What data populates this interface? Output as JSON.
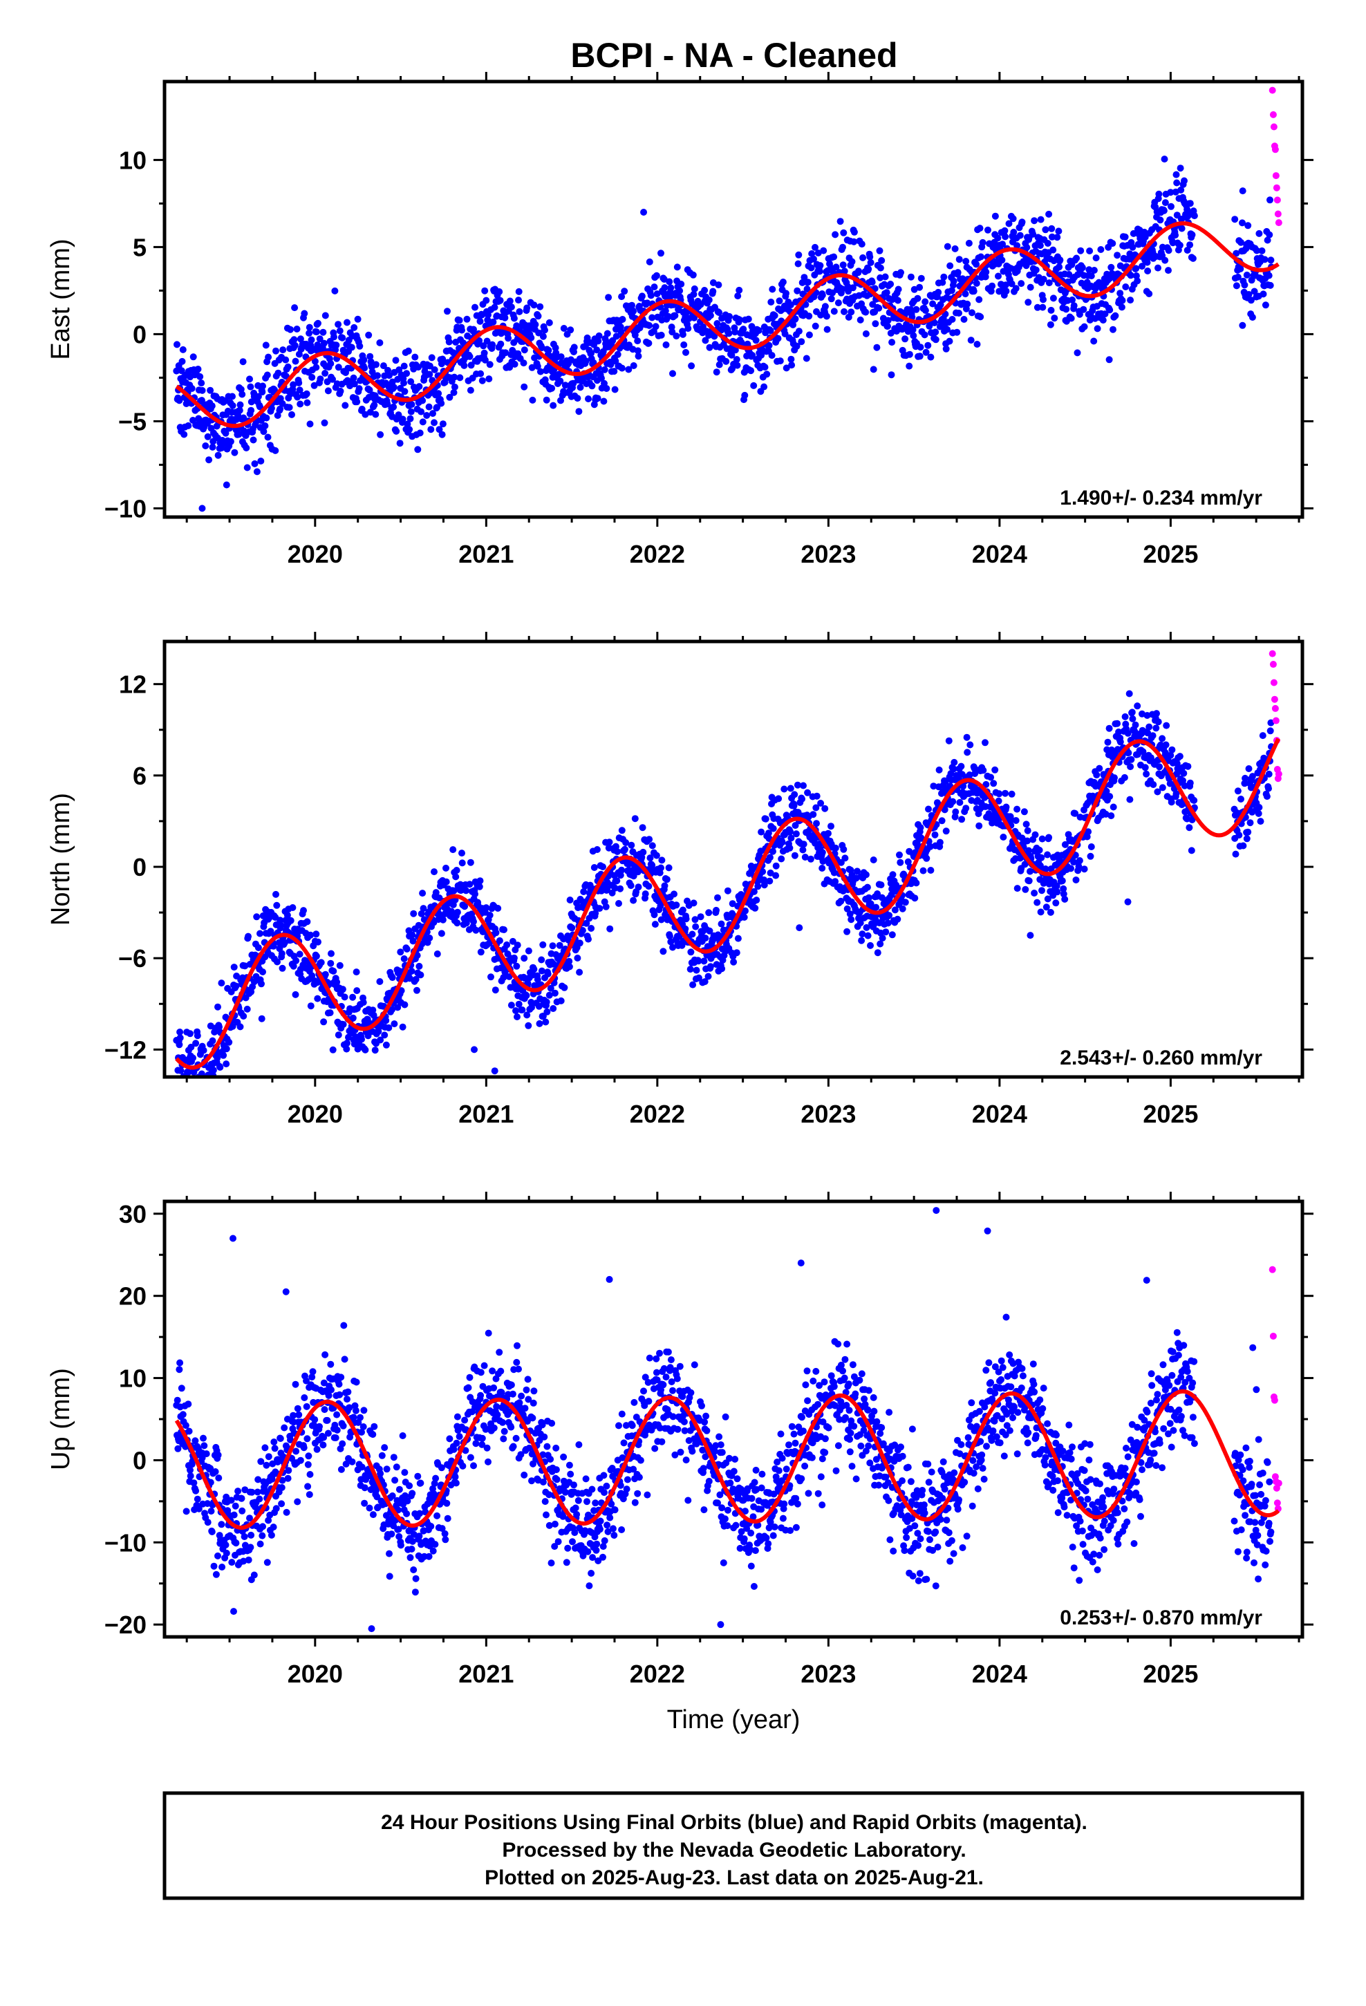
{
  "title": "BCPI  - NA - Cleaned",
  "footer": {
    "lines": [
      "24 Hour Positions Using Final Orbits (blue) and Rapid Orbits (magenta).",
      "Processed by the Nevada Geodetic Laboratory.",
      "Plotted on 2025-Aug-23. Last data on 2025-Aug-21."
    ]
  },
  "colors": {
    "final_orbits": "#0000ff",
    "rapid_orbits": "#ff00ff",
    "model_fit": "#ff0000",
    "frame": "#000000"
  },
  "chart_data": [
    {
      "type": "scatter",
      "component": "east",
      "ylabel": "East (mm)",
      "xlabel": "",
      "xlim": [
        2019.12,
        2025.77
      ],
      "ylim": [
        -10.5,
        14.5
      ],
      "xticks": [
        2020,
        2021,
        2022,
        2023,
        2024,
        2025
      ],
      "yticks": [
        -10,
        -5,
        0,
        5,
        10
      ],
      "ytick_labels": [
        "−10",
        "−5",
        "0",
        "5",
        "10"
      ],
      "rate_label": "1.490+/- 0.234 mm/yr",
      "rate_mm_per_yr": 1.49,
      "seasonal_amp_mm": 1.7,
      "seasonal_phase": 0.8,
      "offset_at_2022_mm": 0.1,
      "scatter_sigma_mm": 1.3,
      "rapid_points": [
        [
          2025.595,
          14.0
        ],
        [
          2025.6,
          12.6
        ],
        [
          2025.604,
          11.9
        ],
        [
          2025.608,
          10.8
        ],
        [
          2025.612,
          10.6
        ],
        [
          2025.616,
          9.1
        ],
        [
          2025.62,
          8.4
        ],
        [
          2025.624,
          7.7
        ],
        [
          2025.628,
          6.9
        ],
        [
          2025.632,
          6.4
        ]
      ],
      "outliers": [
        [
          2019.34,
          -10.0
        ],
        [
          2021.92,
          7.0
        ],
        [
          2024.91,
          7.3
        ],
        [
          2025.42,
          0.5
        ]
      ]
    },
    {
      "type": "scatter",
      "component": "north",
      "ylabel": "North (mm)",
      "xlabel": "",
      "xlim": [
        2019.12,
        2025.77
      ],
      "ylim": [
        -13.8,
        14.8
      ],
      "xticks": [
        2020,
        2021,
        2022,
        2023,
        2024,
        2025
      ],
      "yticks": [
        -12,
        -6,
        0,
        6,
        12
      ],
      "ytick_labels": [
        "−12",
        "−6",
        "0",
        "6",
        "12"
      ],
      "rate_label": "2.543+/- 0.260 mm/yr",
      "rate_mm_per_yr": 2.543,
      "seasonal_amp_mm": 3.7,
      "seasonal_phase": 0.55,
      "offset_at_2022_mm": -2.6,
      "scatter_sigma_mm": 1.2,
      "rapid_points": [
        [
          2025.595,
          14.0
        ],
        [
          2025.6,
          13.3
        ],
        [
          2025.604,
          12.1
        ],
        [
          2025.608,
          11.0
        ],
        [
          2025.612,
          10.4
        ],
        [
          2025.616,
          9.6
        ],
        [
          2025.62,
          8.3
        ],
        [
          2025.624,
          6.4
        ],
        [
          2025.628,
          5.8
        ],
        [
          2025.632,
          6.1
        ]
      ],
      "outliers": [
        [
          2021.05,
          -13.4
        ],
        [
          2020.93,
          -12.0
        ],
        [
          2024.75,
          -2.3
        ],
        [
          2024.18,
          -4.5
        ],
        [
          2022.83,
          -4.0
        ]
      ]
    },
    {
      "type": "scatter",
      "component": "up",
      "ylabel": "Up (mm)",
      "xlabel": "Time (year)",
      "xlim": [
        2019.12,
        2025.77
      ],
      "ylim": [
        -21.5,
        31.5
      ],
      "xticks": [
        2020,
        2021,
        2022,
        2023,
        2024,
        2025
      ],
      "yticks": [
        -20,
        -10,
        0,
        10,
        20,
        30
      ],
      "ytick_labels": [
        "−20",
        "−10",
        "0",
        "10",
        "20",
        "30"
      ],
      "rate_label": "0.253+/- 0.870 mm/yr",
      "rate_mm_per_yr": 0.253,
      "seasonal_amp_mm": 7.6,
      "seasonal_phase": 0.82,
      "offset_at_2022_mm": 0.0,
      "scatter_sigma_mm": 3.3,
      "rapid_points": [
        [
          2025.595,
          23.2
        ],
        [
          2025.6,
          15.1
        ],
        [
          2025.604,
          7.7
        ],
        [
          2025.608,
          7.3
        ],
        [
          2025.612,
          -2.0
        ],
        [
          2025.616,
          -2.6
        ],
        [
          2025.62,
          -3.4
        ],
        [
          2025.624,
          -5.2
        ],
        [
          2025.628,
          -5.9
        ],
        [
          2025.632,
          -2.8
        ]
      ],
      "outliers": [
        [
          2019.52,
          27.0
        ],
        [
          2023.63,
          30.4
        ],
        [
          2023.93,
          27.9
        ],
        [
          2020.33,
          -20.5
        ],
        [
          2022.37,
          -20.0
        ],
        [
          2021.72,
          22.0
        ],
        [
          2022.84,
          24.0
        ],
        [
          2019.83,
          20.5
        ],
        [
          2024.86,
          21.9
        ],
        [
          2025.48,
          13.7
        ]
      ]
    }
  ]
}
